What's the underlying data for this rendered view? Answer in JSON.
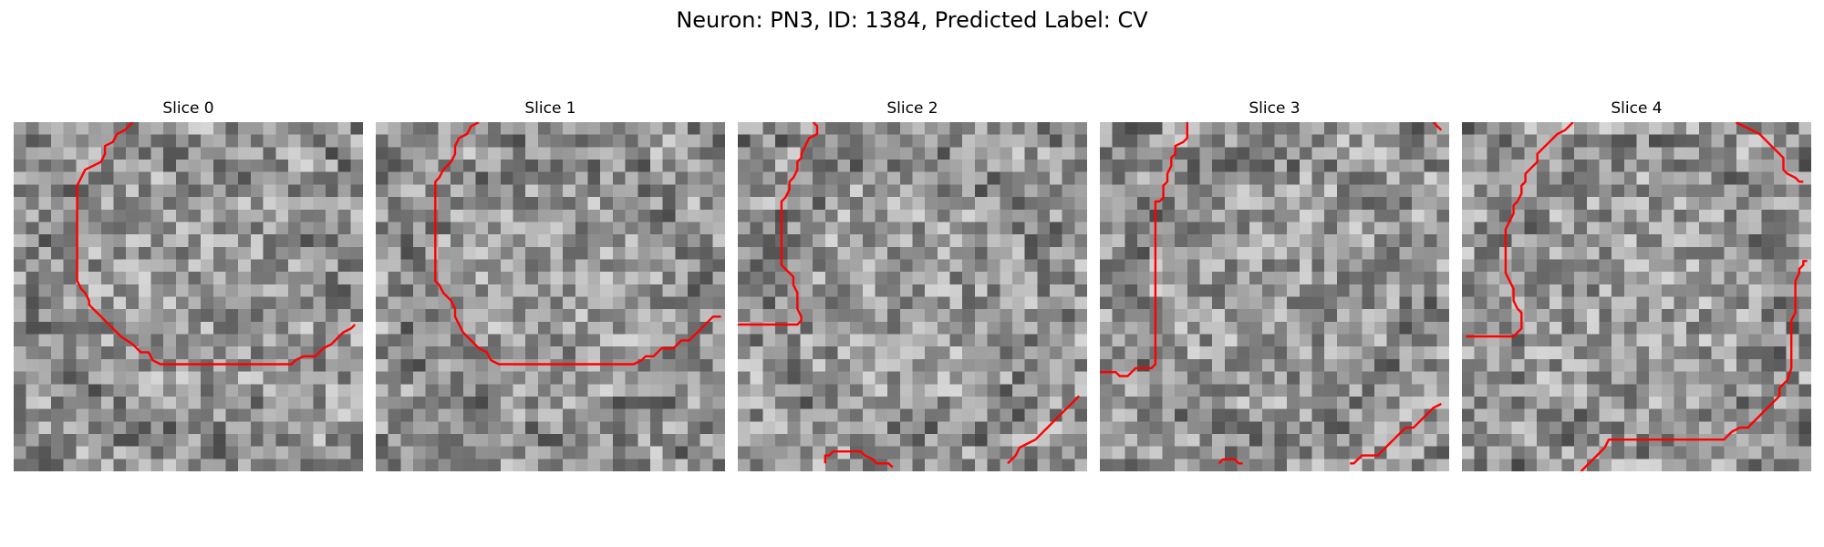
{
  "figure": {
    "title": "Neuron: PN3, ID: 1384, Predicted Label: CV"
  },
  "panels": [
    {
      "title": "Slice 0",
      "contours": [
        [
          [
            30,
            0
          ],
          [
            28,
            2
          ],
          [
            26,
            3
          ],
          [
            25,
            5
          ],
          [
            23,
            6
          ],
          [
            23,
            8
          ],
          [
            22,
            10
          ],
          [
            20,
            11
          ],
          [
            18,
            12
          ],
          [
            17,
            14
          ],
          [
            16,
            16
          ],
          [
            16,
            25
          ],
          [
            16,
            33
          ],
          [
            16,
            40
          ],
          [
            17,
            42
          ],
          [
            18,
            43
          ],
          [
            19,
            45
          ],
          [
            19,
            46
          ],
          [
            20,
            47
          ],
          [
            22,
            49
          ],
          [
            25,
            52
          ],
          [
            27,
            54
          ],
          [
            30,
            56
          ],
          [
            32,
            58
          ],
          [
            34,
            58
          ],
          [
            35,
            60
          ],
          [
            37,
            61
          ],
          [
            50,
            61
          ],
          [
            63,
            61
          ],
          [
            70,
            61
          ],
          [
            71,
            60
          ],
          [
            73,
            59
          ],
          [
            76,
            59
          ],
          [
            78,
            57
          ],
          [
            80,
            56
          ],
          [
            81,
            55
          ],
          [
            82,
            54
          ],
          [
            83,
            53
          ],
          [
            85,
            52
          ],
          [
            86,
            51
          ]
        ]
      ]
    },
    {
      "title": "Slice 1",
      "contours": [
        [
          [
            26,
            0
          ],
          [
            24,
            1
          ],
          [
            23,
            3
          ],
          [
            21,
            4
          ],
          [
            20,
            6
          ],
          [
            20,
            8
          ],
          [
            19,
            10
          ],
          [
            17,
            12
          ],
          [
            16,
            14
          ],
          [
            15,
            15
          ],
          [
            15,
            24
          ],
          [
            15,
            32
          ],
          [
            15,
            40
          ],
          [
            16,
            41
          ],
          [
            17,
            43
          ],
          [
            18,
            44
          ],
          [
            19,
            45
          ],
          [
            20,
            47
          ],
          [
            20,
            49
          ],
          [
            21,
            51
          ],
          [
            22,
            53
          ],
          [
            24,
            55
          ],
          [
            26,
            57
          ],
          [
            28,
            58
          ],
          [
            29,
            60
          ],
          [
            31,
            61
          ],
          [
            33,
            61
          ],
          [
            46,
            61
          ],
          [
            59,
            61
          ],
          [
            65,
            61
          ],
          [
            67,
            60
          ],
          [
            68,
            59
          ],
          [
            70,
            59
          ],
          [
            72,
            57
          ],
          [
            75,
            57
          ],
          [
            77,
            55
          ],
          [
            79,
            55
          ],
          [
            82,
            52
          ],
          [
            85,
            49
          ],
          [
            87,
            49
          ]
        ]
      ]
    },
    {
      "title": "Slice 2",
      "contours": [
        [
          [
            19,
            0
          ],
          [
            20,
            1
          ],
          [
            20,
            3
          ],
          [
            18,
            4
          ],
          [
            17,
            6
          ],
          [
            16,
            8
          ],
          [
            16,
            9
          ],
          [
            15,
            10
          ],
          [
            15,
            12
          ],
          [
            14,
            14
          ],
          [
            13,
            15
          ],
          [
            13,
            17
          ],
          [
            12,
            19
          ],
          [
            11,
            20
          ],
          [
            11,
            22
          ],
          [
            11,
            30
          ],
          [
            11,
            36
          ],
          [
            12,
            37
          ],
          [
            13,
            38
          ],
          [
            14,
            39
          ],
          [
            14,
            41
          ],
          [
            15,
            43
          ],
          [
            15,
            47
          ],
          [
            16,
            49
          ],
          [
            16,
            50
          ],
          [
            15,
            51
          ],
          [
            14,
            51
          ],
          [
            0,
            51
          ]
        ],
        [
          [
            22,
            86
          ],
          [
            22,
            84
          ],
          [
            23,
            84
          ],
          [
            24,
            83
          ],
          [
            31,
            83
          ],
          [
            32,
            84
          ],
          [
            34,
            85
          ],
          [
            35,
            86
          ],
          [
            38,
            86
          ],
          [
            39,
            87
          ]
        ],
        [
          [
            68,
            86
          ],
          [
            70,
            84
          ],
          [
            71,
            82
          ],
          [
            73,
            81
          ],
          [
            75,
            80
          ],
          [
            76,
            79
          ],
          [
            78,
            77
          ],
          [
            80,
            75
          ],
          [
            82,
            73
          ],
          [
            84,
            71
          ],
          [
            85,
            70
          ],
          [
            86,
            69
          ]
        ]
      ]
    },
    {
      "title": "Slice 3",
      "contours": [
        [
          [
            22,
            0
          ],
          [
            22,
            4
          ],
          [
            21,
            5
          ],
          [
            19,
            6
          ],
          [
            19,
            8
          ],
          [
            18,
            9
          ],
          [
            18,
            11
          ],
          [
            17,
            13
          ],
          [
            17,
            15
          ],
          [
            16,
            16
          ],
          [
            16,
            19
          ],
          [
            15,
            20
          ],
          [
            14,
            20
          ],
          [
            14,
            23
          ],
          [
            14,
            50
          ],
          [
            14,
            61
          ],
          [
            13,
            62
          ],
          [
            12,
            62
          ],
          [
            11,
            62
          ],
          [
            9,
            62
          ],
          [
            8,
            63
          ],
          [
            7,
            64
          ],
          [
            5,
            64
          ],
          [
            4,
            63
          ],
          [
            0,
            63
          ]
        ],
        [
          [
            30,
            86
          ],
          [
            31,
            85
          ],
          [
            34,
            85
          ],
          [
            35,
            86
          ],
          [
            36,
            86
          ]
        ],
        [
          [
            63,
            86
          ],
          [
            64,
            86
          ],
          [
            65,
            85
          ],
          [
            66,
            84
          ],
          [
            70,
            84
          ],
          [
            71,
            83
          ],
          [
            72,
            82
          ],
          [
            73,
            81
          ],
          [
            74,
            80
          ],
          [
            75,
            79
          ],
          [
            77,
            77
          ],
          [
            79,
            77
          ],
          [
            80,
            76
          ],
          [
            82,
            74
          ],
          [
            84,
            72
          ],
          [
            86,
            71
          ]
        ],
        [
          [
            84,
            0
          ],
          [
            85,
            1
          ],
          [
            86,
            2
          ]
        ]
      ]
    },
    {
      "title": "Slice 4",
      "contours": [
        [
          [
            28,
            0
          ],
          [
            26,
            2
          ],
          [
            24,
            3
          ],
          [
            22,
            5
          ],
          [
            20,
            7
          ],
          [
            19,
            8
          ],
          [
            19,
            10
          ],
          [
            17,
            12
          ],
          [
            16,
            13
          ],
          [
            16,
            15
          ],
          [
            15,
            16
          ],
          [
            15,
            18
          ],
          [
            14,
            20
          ],
          [
            13,
            21
          ],
          [
            13,
            23
          ],
          [
            12,
            25
          ],
          [
            11,
            27
          ],
          [
            11,
            30
          ],
          [
            11,
            38
          ],
          [
            12,
            40
          ],
          [
            13,
            42
          ],
          [
            13,
            45
          ],
          [
            14,
            47
          ],
          [
            15,
            48
          ],
          [
            15,
            52
          ],
          [
            14,
            53
          ],
          [
            13,
            54
          ],
          [
            12,
            54
          ],
          [
            1,
            54
          ]
        ],
        [
          [
            30,
            88
          ],
          [
            32,
            86
          ],
          [
            34,
            84
          ],
          [
            36,
            82
          ],
          [
            37,
            80
          ],
          [
            50,
            80
          ],
          [
            60,
            80
          ],
          [
            66,
            80
          ],
          [
            67,
            79
          ],
          [
            68,
            78
          ],
          [
            70,
            77
          ],
          [
            72,
            77
          ],
          [
            74,
            75
          ],
          [
            76,
            73
          ],
          [
            78,
            71
          ],
          [
            80,
            69
          ],
          [
            80,
            67
          ],
          [
            81,
            66
          ],
          [
            82,
            65
          ],
          [
            83,
            62
          ],
          [
            83,
            50
          ],
          [
            84,
            48
          ],
          [
            84,
            40
          ],
          [
            85,
            38
          ],
          [
            85,
            37
          ],
          [
            86,
            36
          ],
          [
            86,
            35
          ],
          [
            87,
            35
          ]
        ],
        [
          [
            69,
            0
          ],
          [
            71,
            1
          ],
          [
            73,
            2
          ],
          [
            75,
            3
          ],
          [
            77,
            5
          ],
          [
            79,
            7
          ],
          [
            80,
            8
          ],
          [
            81,
            9
          ],
          [
            81,
            12
          ],
          [
            82,
            13
          ],
          [
            84,
            14
          ],
          [
            85,
            15
          ],
          [
            86,
            15
          ]
        ]
      ]
    }
  ],
  "styles": {
    "contour_color": "#ff0000"
  }
}
